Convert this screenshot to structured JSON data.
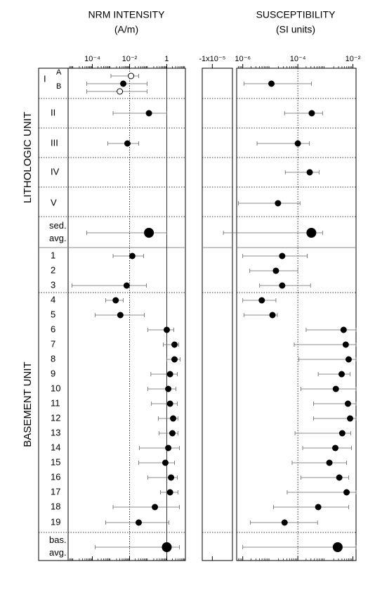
{
  "rows": {
    "categories": [
      "A",
      "I",
      "B",
      "II",
      "III",
      "IV",
      "V",
      "sed. avg.",
      "1",
      "2",
      "3",
      "4",
      "5",
      "6",
      "7",
      "8",
      "9",
      "10",
      "11",
      "12",
      "13",
      "14",
      "15",
      "16",
      "17",
      "18",
      "19",
      "bas. avg."
    ],
    "markers": [
      "open",
      "filled",
      "open",
      "filled",
      "filled",
      "filled",
      "filled",
      "big",
      "filled",
      "filled",
      "filled",
      "filled",
      "filled",
      "filled",
      "filled",
      "filled",
      "filled",
      "filled",
      "filled",
      "filled",
      "filled",
      "filled",
      "filled",
      "filled",
      "filled",
      "filled",
      "filled",
      "big"
    ],
    "groups": [
      "LITHOLOGIC UNIT",
      "BASEMENT UNIT"
    ]
  },
  "chart_data": [
    {
      "type": "range-dot",
      "title": "NRM INTENSITY",
      "subtitle": "(A/m)",
      "log_x": true,
      "color": "#000000",
      "xlim": [
        5e-06,
        10
      ],
      "xticks": [
        {
          "value": 0.0001,
          "label": "10⁻⁴"
        },
        {
          "value": 0.01,
          "label": "10⁻²"
        },
        1
      ],
      "reference_lines": [
        {
          "value": 0.01,
          "style": "dotted"
        },
        {
          "value": 1,
          "style": "solid"
        }
      ],
      "values": [
        0.012,
        0.0046,
        0.003,
        0.11,
        0.0077,
        null,
        null,
        0.11,
        0.014,
        null,
        0.007,
        0.0018,
        0.0032,
        1,
        2.6,
        2.6,
        1.5,
        1.2,
        1.5,
        2.2,
        2,
        1.2,
        0.84,
        1.7,
        1.5,
        0.23,
        0.031,
        1
      ],
      "err_low": [
        0.001,
        5e-05,
        5e-05,
        0.0013,
        0.00068,
        null,
        null,
        5e-05,
        0.0013,
        null,
        8e-06,
        0.00052,
        0.00014,
        0.096,
        0.65,
        1,
        0.14,
        0.096,
        0.15,
        0.35,
        0.38,
        0.034,
        0.031,
        0.096,
        0.46,
        0.0013,
        0.00052,
        0.00014
      ],
      "err_high": [
        0.031,
        0.087,
        0.087,
        1,
        0.031,
        null,
        null,
        1,
        0.057,
        null,
        0.08,
        0.0046,
        0.062,
        2.4,
        4.4,
        5.2,
        3.7,
        3.1,
        3.7,
        4,
        4,
        4.8,
        2.6,
        3.7,
        4,
        4.8,
        1.3,
        4.8
      ]
    },
    {
      "type": "range-dot",
      "title": "SUSCEPTIBILITY",
      "subtitle": "(SI units)",
      "log_x": true,
      "color": "#000000",
      "xlim": [
        6e-07,
        0.013
      ],
      "xticks": [
        {
          "value": 1e-06,
          "label": "10⁻⁶"
        },
        {
          "value": 0.0001,
          "label": "10⁻⁴"
        },
        {
          "value": 0.01,
          "label": "10⁻²"
        }
      ],
      "negative_xlim": [
        -1.5e-05,
        0
      ],
      "negative_xticks": [
        {
          "value": -1e-05,
          "label": "-1x10⁻⁵"
        }
      ],
      "reference_lines": [
        {
          "value": 0.0001,
          "style": "dotted"
        }
      ],
      "values": [
        null,
        1.1e-05,
        null,
        0.00032,
        0.0001,
        0.00027,
        1.9e-05,
        0.00031,
        2.7e-05,
        1.6e-05,
        2.7e-05,
        4.9e-06,
        1.2e-05,
        0.0046,
        0.0055,
        0.007,
        0.0039,
        0.0024,
        0.0066,
        0.0079,
        0.0041,
        0.0023,
        0.0014,
        0.0032,
        0.0059,
        0.00055,
        3.3e-05,
        0.0028
      ],
      "err_low": [
        null,
        1.1e-06,
        null,
        3.3e-05,
        3.3e-06,
        3.5e-05,
        7e-07,
        -4.5e-06,
        1e-06,
        1.8e-06,
        4.1e-06,
        1e-06,
        1.1e-06,
        0.0002,
        7.4e-05,
        0.00011,
        0.00055,
        0.00013,
        0.00037,
        0.00037,
        7.9e-05,
        0.00015,
        6.2e-05,
        0.00013,
        4.1e-05,
        1.3e-05,
        1.9e-06,
        1e-06
      ],
      "err_high": [
        null,
        0.00031,
        null,
        0.00079,
        0.00026,
        0.00059,
        0.00012,
        0.00079,
        0.00022,
        0.0001,
        0.00029,
        1.6e-05,
        1.8e-05,
        0.013,
        0.013,
        0.013,
        0.0079,
        0.013,
        0.013,
        0.013,
        0.0084,
        0.0089,
        0.0059,
        0.007,
        0.013,
        0.007,
        0.00052,
        0.013
      ]
    }
  ]
}
